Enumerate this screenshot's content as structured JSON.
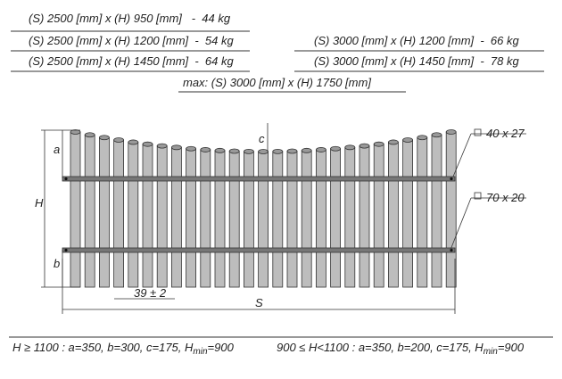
{
  "table": {
    "rows": [
      [
        "(S) 2500 [mm] x (H) 950 [mm]   -  44 kg"
      ],
      [
        "(S) 2500 [mm] x (H) 1200 [mm]  -  54 kg",
        "(S) 3000 [mm] x (H) 1200 [mm]  -  66 kg"
      ],
      [
        "(S) 2500 [mm] x (H) 1450 [mm]  -  64 kg",
        "(S) 3000 [mm] x (H) 1450 [mm]  -  78 kg"
      ]
    ],
    "max": "max: (S) 3000 [mm] x (H) 1750 [mm]"
  },
  "drawing": {
    "rail_top": "40 x 27",
    "rail_bottom": "70 x 20",
    "a": "a",
    "b": "b",
    "c": "c",
    "H": "H",
    "gap": "39 ± 2",
    "S": "S"
  },
  "footer": [
    {
      "main": "H ≥ 1100 : a=350, b=300, c=175, H",
      "sub": "min",
      "end": "=900"
    },
    {
      "main": "900 ≤ H<1100 : a=350, b=200, c=175, H",
      "sub": "min",
      "end": "=900"
    }
  ]
}
